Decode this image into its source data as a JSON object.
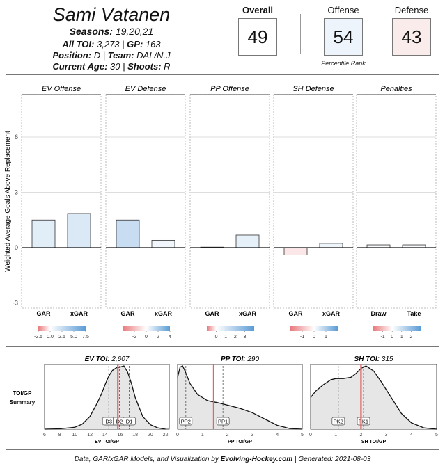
{
  "header": {
    "player_name": "Sami Vatanen",
    "seasons_label": "Seasons",
    "seasons_value": "19,20,21",
    "all_toi_label": "All TOI",
    "all_toi_value": "3,273",
    "gp_label": "GP",
    "gp_value": "163",
    "position_label": "Position",
    "position_value": "D",
    "team_label": "Team",
    "team_value": "DAL/N.J",
    "age_label": "Current  Age",
    "age_value": "30",
    "shoots_label": "Shoots",
    "shoots_value": "R"
  },
  "percentiles": {
    "overall_label": "Overall",
    "overall_value": "49",
    "offense_label": "Offense",
    "offense_value": "54",
    "defense_label": "Defense",
    "defense_value": "43",
    "rank_note": "Percentile Rank"
  },
  "colors": {
    "negative": "#e8797c",
    "positive": "#5b9bd5",
    "neutral": "#ffffff",
    "toi_marker": "#e06666",
    "density_fill": "#e6e6e6"
  },
  "chart_data": [
    {
      "type": "bar",
      "ylabel": "Weighted Average Goals Above Replacement",
      "ylim": [
        -3.3,
        8
      ],
      "yticks": [
        -3,
        0,
        3,
        6
      ],
      "grid": true,
      "panels": [
        {
          "title": "EV Offense",
          "categories": [
            "GAR",
            "xGAR"
          ],
          "values": [
            1.5,
            1.85
          ],
          "scale": {
            "min": -2.5,
            "max": 7.5,
            "ticks": [
              "-2.5",
              "0.0",
              "2.5",
              "5.0",
              "7.5"
            ],
            "tick_values": [
              -2.5,
              0,
              2.5,
              5,
              7.5
            ]
          }
        },
        {
          "title": "EV Defense",
          "categories": [
            "GAR",
            "xGAR"
          ],
          "values": [
            1.5,
            0.4
          ],
          "scale": {
            "min": -4,
            "max": 4,
            "ticks": [
              "-2",
              "0",
              "2",
              "4"
            ],
            "tick_values": [
              -2,
              0,
              2,
              4
            ]
          }
        },
        {
          "title": "PP Offense",
          "categories": [
            "GAR",
            "xGAR"
          ],
          "values": [
            0.03,
            0.68
          ],
          "scale": {
            "min": -1,
            "max": 4,
            "ticks": [
              "0",
              "1",
              "2",
              "3"
            ],
            "tick_values": [
              0,
              1,
              2,
              3
            ]
          }
        },
        {
          "title": "SH Defense",
          "categories": [
            "GAR",
            "xGAR"
          ],
          "values": [
            -0.4,
            0.23
          ],
          "scale": {
            "min": -2,
            "max": 2,
            "ticks": [
              "-1",
              "0",
              "1"
            ],
            "tick_values": [
              -1,
              0,
              1
            ]
          }
        },
        {
          "title": "Penalties",
          "categories": [
            "Draw",
            "Take"
          ],
          "values": [
            0.15,
            0.15
          ],
          "scale": {
            "min": -2,
            "max": 3,
            "ticks": [
              "-1",
              "0",
              "1",
              "2"
            ],
            "tick_values": [
              -1,
              0,
              1,
              2
            ]
          }
        }
      ]
    },
    {
      "type": "area",
      "row_label": "TOI/GP\nSummary",
      "panels": [
        {
          "title": "EV TOI",
          "toi": "2,607",
          "xlabel": "EV TOI/GP",
          "xlim": [
            6,
            22.5
          ],
          "xticks": [
            6,
            8,
            10,
            12,
            14,
            16,
            18,
            20,
            22
          ],
          "player_value": 15.7,
          "quantiles": [
            {
              "label": "D3",
              "x": 14.5
            },
            {
              "label": "D2",
              "x": 15.9
            },
            {
              "label": "D1",
              "x": 17.2
            }
          ],
          "x": [
            6,
            8,
            10,
            11,
            12,
            13,
            13.5,
            14,
            14.5,
            15,
            15.5,
            16,
            16.5,
            17,
            17.5,
            18,
            19,
            20,
            21,
            22
          ],
          "y": [
            0,
            0.005,
            0.03,
            0.08,
            0.2,
            0.42,
            0.55,
            0.7,
            0.84,
            0.93,
            0.97,
            0.98,
            1.0,
            0.9,
            0.72,
            0.5,
            0.2,
            0.07,
            0.02,
            0
          ]
        },
        {
          "title": "PP TOI",
          "toi": "290",
          "xlabel": "PP TOI/GP",
          "xlim": [
            0,
            5
          ],
          "xticks": [
            0,
            1,
            2,
            3,
            4,
            5
          ],
          "player_value": 1.45,
          "quantiles": [
            {
              "label": "PP2",
              "x": 0.33
            },
            {
              "label": "PP1",
              "x": 1.82
            }
          ],
          "x": [
            0,
            0.1,
            0.2,
            0.3,
            0.5,
            0.8,
            1.2,
            1.6,
            2.0,
            2.5,
            3.0,
            3.5,
            4.0,
            4.5,
            5.0
          ],
          "y": [
            0.82,
            0.98,
            1.0,
            0.92,
            0.72,
            0.55,
            0.45,
            0.42,
            0.38,
            0.33,
            0.26,
            0.16,
            0.06,
            0.01,
            0
          ]
        },
        {
          "title": "SH TOI",
          "toi": "315",
          "xlabel": "SH TOI/GP",
          "xlim": [
            0,
            5
          ],
          "xticks": [
            0,
            1,
            2,
            3,
            4,
            5
          ],
          "player_value": 2.0,
          "quantiles": [
            {
              "label": "PK2",
              "x": 1.1
            },
            {
              "label": "PK1",
              "x": 2.1
            }
          ],
          "x": [
            0,
            0.2,
            0.5,
            0.8,
            1.0,
            1.3,
            1.6,
            1.8,
            2.0,
            2.2,
            2.5,
            2.8,
            3.2,
            3.6,
            4.0,
            4.5,
            5.0
          ],
          "y": [
            0.5,
            0.6,
            0.7,
            0.78,
            0.8,
            0.8,
            0.82,
            0.88,
            0.96,
            1.0,
            0.92,
            0.75,
            0.5,
            0.25,
            0.1,
            0.02,
            0
          ]
        }
      ]
    }
  ],
  "footer": {
    "text_prefix": "Data, GAR/xGAR Models,  and Visualization by ",
    "brand": "Evolving-Hockey.com",
    "text_suffix": "  | Generated: 2021-08-03"
  }
}
